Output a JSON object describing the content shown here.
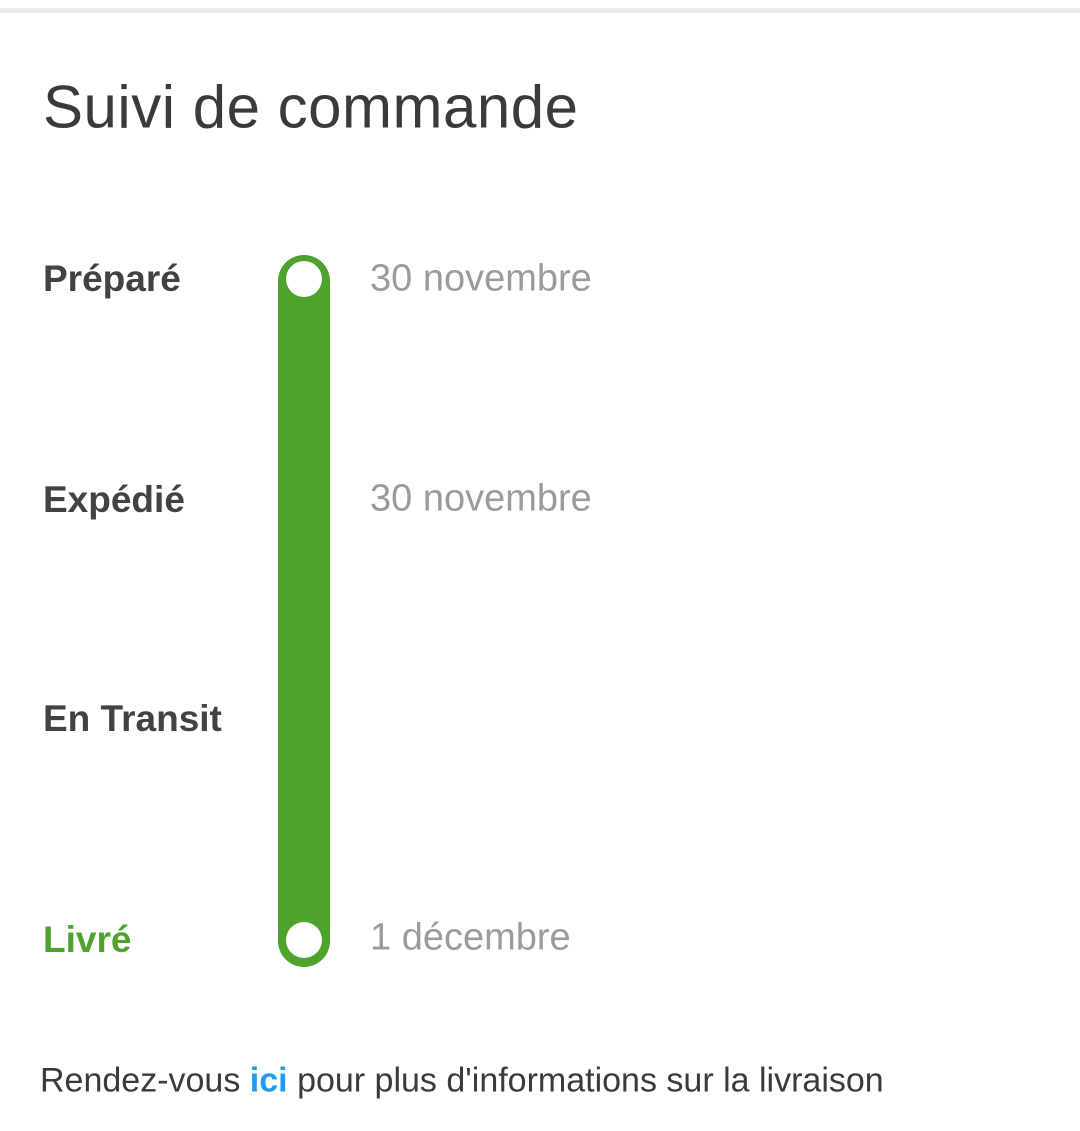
{
  "page": {
    "title": "Suivi de commande"
  },
  "colors": {
    "accent_green": "#4fa32d",
    "link_blue": "#1e9bf0",
    "date_gray": "#9b9b9b",
    "text_dark": "#3a3a3a",
    "divider_gray": "#eaeaea"
  },
  "timeline": {
    "steps": [
      {
        "label": "Préparé",
        "date": "30 novembre",
        "has_marker": true,
        "state": "done"
      },
      {
        "label": "Expédié",
        "date": "30 novembre",
        "has_marker": false,
        "state": "done"
      },
      {
        "label": "En Transit",
        "date": "",
        "has_marker": false,
        "state": "done"
      },
      {
        "label": "Livré",
        "date": "1 décembre",
        "has_marker": true,
        "state": "current"
      }
    ]
  },
  "footer": {
    "prefix": "Rendez-vous",
    "link": "ici",
    "suffix": "pour plus d'informations sur la livraison"
  }
}
